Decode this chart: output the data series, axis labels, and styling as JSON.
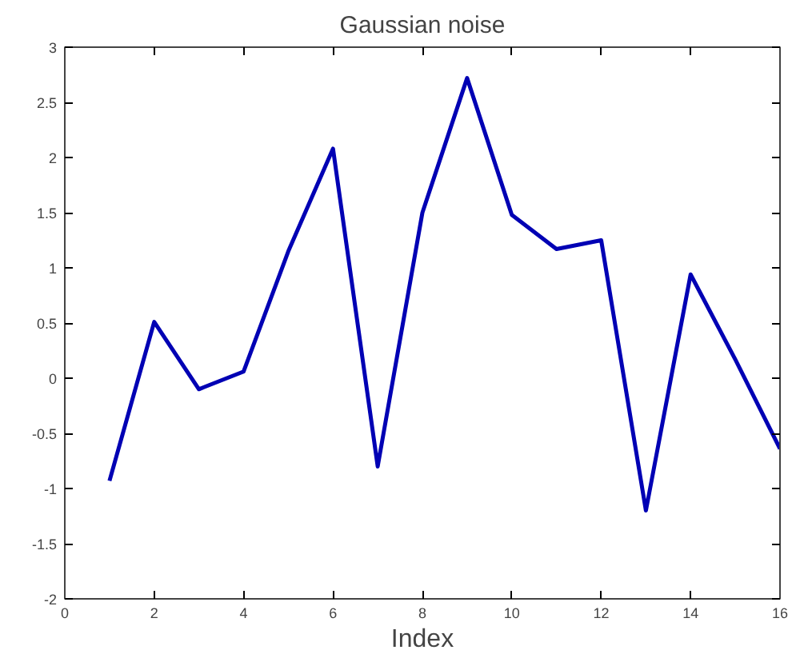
{
  "chart_data": {
    "type": "line",
    "title": "Gaussian noise",
    "xlabel": "Index",
    "x": [
      1,
      2,
      3,
      4,
      5,
      6,
      7,
      8,
      9,
      10,
      11,
      12,
      13,
      14,
      15,
      16
    ],
    "series": [
      {
        "color": "#0000b4",
        "values": [
          -0.93,
          0.51,
          -0.1,
          0.06,
          1.15,
          2.08,
          -0.8,
          1.5,
          2.72,
          1.48,
          1.17,
          1.25,
          -1.2,
          0.94,
          0.17,
          -0.64
        ]
      }
    ],
    "xlim": [
      0,
      16
    ],
    "xticks": [
      0,
      2,
      4,
      6,
      8,
      10,
      12,
      14,
      16
    ],
    "ylim": [
      -2,
      3
    ],
    "yticks": [
      -2,
      -1.5,
      -1,
      -0.5,
      0,
      0.5,
      1,
      1.5,
      2,
      2.5,
      3
    ],
    "grid": false,
    "marker": "none",
    "line_style": "solid"
  }
}
